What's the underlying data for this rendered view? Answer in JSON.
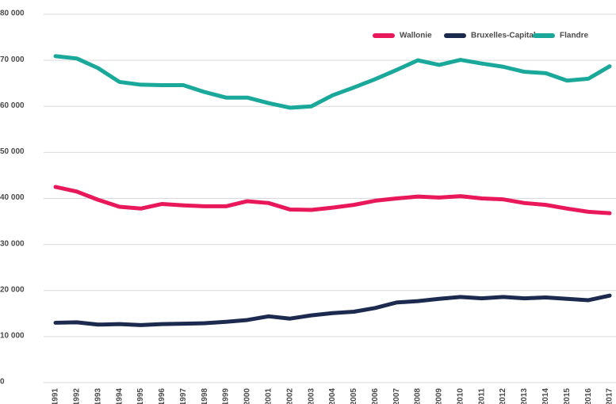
{
  "chart_data": {
    "type": "line",
    "categories": [
      "1991",
      "1992",
      "1993",
      "1994",
      "1995",
      "1996",
      "1997",
      "1998",
      "1999",
      "2000",
      "2001",
      "2002",
      "2003",
      "2004",
      "2005",
      "2006",
      "2007",
      "2008",
      "2009",
      "2010",
      "2011",
      "2012",
      "2013",
      "2014",
      "2015",
      "2016",
      "2017"
    ],
    "series": [
      {
        "name": "Wallonie",
        "color": "#e8185a",
        "values": [
          42500,
          41500,
          39700,
          38200,
          37800,
          38800,
          38500,
          38300,
          38300,
          39400,
          39000,
          37600,
          37500,
          38000,
          38600,
          39500,
          40000,
          40400,
          40200,
          40500,
          40000,
          39800,
          39000,
          38600,
          37800,
          37100,
          36800
        ]
      },
      {
        "name": "Bruxelles-Capitale",
        "color": "#1b2a4e",
        "values": [
          13000,
          13100,
          12600,
          12700,
          12500,
          12700,
          12800,
          12900,
          13200,
          13600,
          14400,
          13900,
          14600,
          15100,
          15400,
          16200,
          17400,
          17700,
          18200,
          18600,
          18300,
          18600,
          18300,
          18500,
          18200,
          17900,
          18900
        ]
      },
      {
        "name": "Flandre",
        "color": "#1aa89a",
        "values": [
          70900,
          70400,
          68300,
          65300,
          64700,
          64600,
          64600,
          63100,
          61900,
          61900,
          60700,
          59700,
          60000,
          62400,
          64100,
          65900,
          67900,
          70000,
          69000,
          70100,
          69300,
          68600,
          67500,
          67200,
          65600,
          66000,
          68700
        ]
      }
    ],
    "ylim": [
      0,
      80000
    ],
    "yticks": [
      0,
      {
        "value": 10000,
        "label": "10 000"
      },
      {
        "value": 20000,
        "label": "20 000"
      },
      {
        "value": 30000,
        "label": "30 000"
      },
      {
        "value": 40000,
        "label": "40 000"
      },
      {
        "value": 50000,
        "label": "50 000"
      },
      {
        "value": 60000,
        "label": "60 000"
      },
      {
        "value": 70000,
        "label": "70 000"
      },
      {
        "value": 80000,
        "label": "80 000"
      }
    ],
    "grid": true,
    "legend": "top-right"
  }
}
